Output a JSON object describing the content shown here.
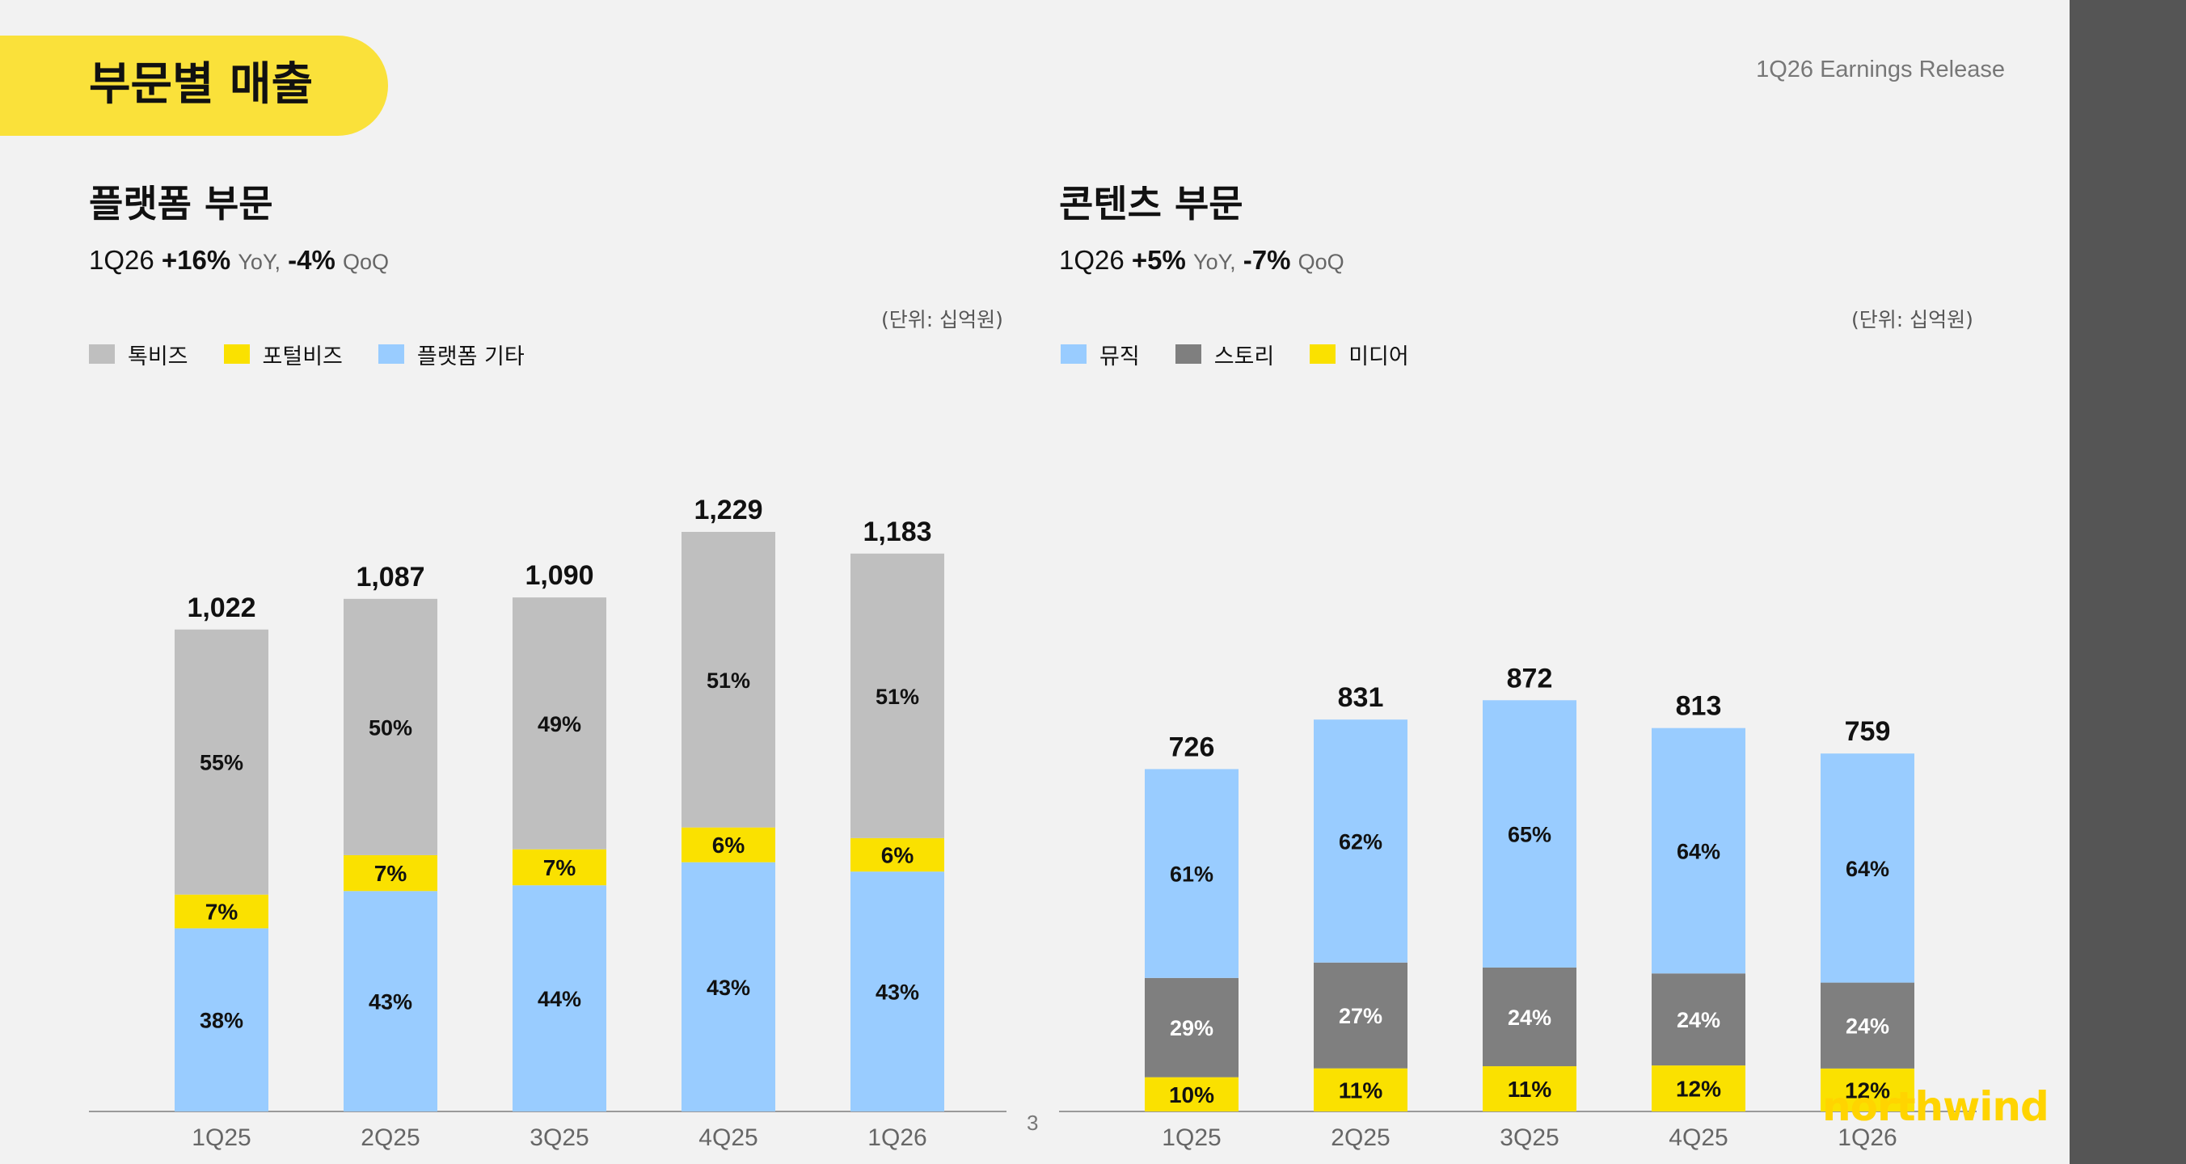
{
  "header": {
    "title": "부문별 매출",
    "release": "1Q26 Earnings Release"
  },
  "colors": {
    "accent": "#fae13a",
    "talkbiz": "#bfbfbf",
    "portalbiz": "#fae100",
    "platform_other": "#99ccff",
    "music": "#99ccff",
    "story": "#7f7f7f",
    "media": "#fae100",
    "sidebar": "#555555"
  },
  "platform": {
    "title": "플랫폼 부문",
    "period": "1Q26",
    "yoy": "+16%",
    "yoy_label": "YoY,",
    "qoq": "-4%",
    "qoq_label": "QoQ",
    "unit": "(단위: 십억원)",
    "legend": [
      "톡비즈",
      "포털비즈",
      "플랫폼 기타"
    ]
  },
  "content": {
    "title": "콘텐츠 부문",
    "period": "1Q26",
    "yoy": "+5%",
    "yoy_label": "YoY,",
    "qoq": "-7%",
    "qoq_label": "QoQ",
    "unit": "(단위: 십억원)",
    "legend": [
      "뮤직",
      "스토리",
      "미디어"
    ]
  },
  "page_number": "3",
  "brand": "northwind",
  "chart_data": [
    {
      "type": "bar",
      "stacked": true,
      "title": "플랫폼 부문",
      "unit": "십억원",
      "categories": [
        "1Q25",
        "2Q25",
        "3Q25",
        "4Q25",
        "1Q26"
      ],
      "totals": [
        1022,
        1087,
        1090,
        1229,
        1183
      ],
      "total_labels": [
        "1,022",
        "1,087",
        "1,090",
        "1,229",
        "1,183"
      ],
      "series": [
        {
          "name": "플랫폼 기타",
          "color": "#99ccff",
          "share": [
            38,
            43,
            44,
            43,
            43
          ],
          "labels": [
            "38%",
            "43%",
            "44%",
            "43%",
            "43%"
          ]
        },
        {
          "name": "포털비즈",
          "color": "#fae100",
          "share": [
            7,
            7,
            7,
            6,
            6
          ],
          "labels": [
            "7%",
            "7%",
            "7%",
            "6%",
            "6%"
          ]
        },
        {
          "name": "톡비즈",
          "color": "#bfbfbf",
          "share": [
            55,
            50,
            49,
            51,
            51
          ],
          "labels": [
            "55%",
            "50%",
            "49%",
            "51%",
            "51%"
          ]
        }
      ],
      "legend": "top-left"
    },
    {
      "type": "bar",
      "stacked": true,
      "title": "콘텐츠 부문",
      "unit": "십억원",
      "categories": [
        "1Q25",
        "2Q25",
        "3Q25",
        "4Q25",
        "1Q26"
      ],
      "totals": [
        726,
        831,
        872,
        813,
        759
      ],
      "total_labels": [
        "726",
        "831",
        "872",
        "813",
        "759"
      ],
      "series": [
        {
          "name": "미디어",
          "color": "#fae100",
          "share": [
            10,
            11,
            11,
            12,
            12
          ],
          "labels": [
            "10%",
            "11%",
            "11%",
            "12%",
            "12%"
          ]
        },
        {
          "name": "스토리",
          "color": "#7f7f7f",
          "share": [
            29,
            27,
            24,
            24,
            24
          ],
          "labels": [
            "29%",
            "27%",
            "24%",
            "24%",
            "24%"
          ]
        },
        {
          "name": "뮤직",
          "color": "#99ccff",
          "share": [
            61,
            62,
            65,
            64,
            64
          ],
          "labels": [
            "61%",
            "62%",
            "65%",
            "64%",
            "64%"
          ]
        }
      ],
      "legend": "top-left"
    }
  ]
}
